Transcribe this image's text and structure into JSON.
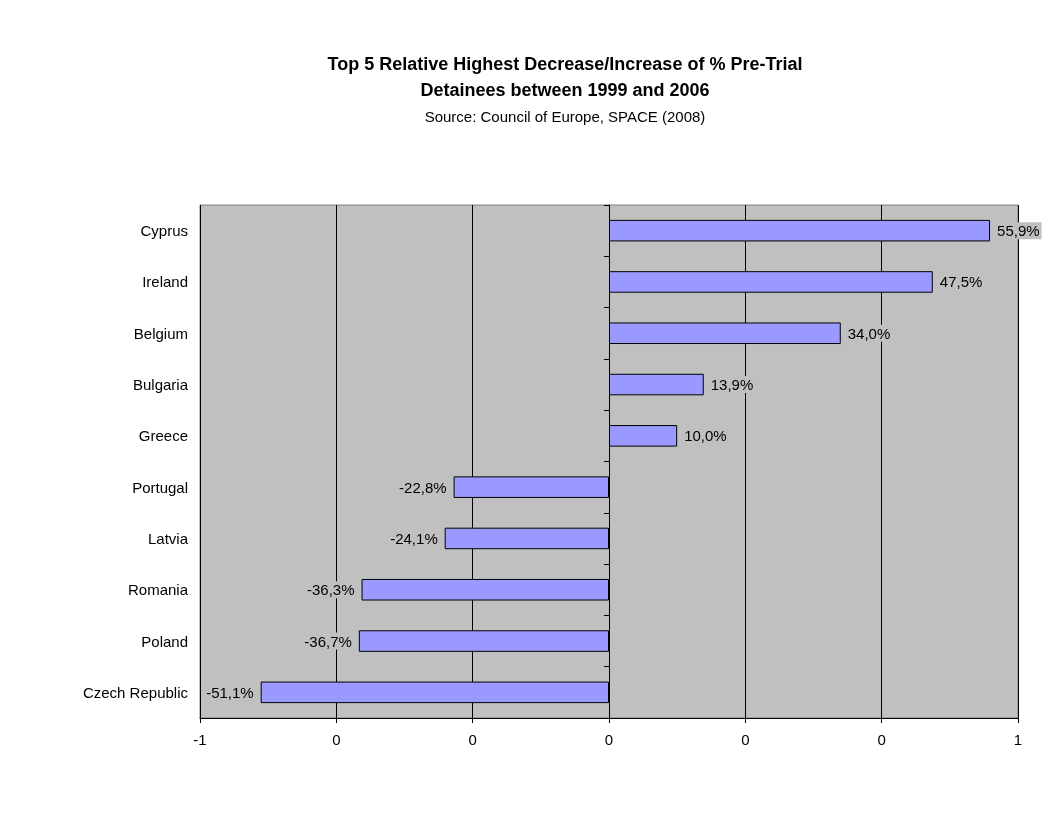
{
  "chart_data": {
    "type": "bar",
    "orientation": "horizontal",
    "title": "Top 5 Relative Highest Decrease/Increase of % Pre-Trial\nDetainees between 1999 and 2006",
    "subtitle": "Source: Council of Europe, SPACE (2008)",
    "categories": [
      "Cyprus",
      "Ireland",
      "Belgium",
      "Bulgaria",
      "Greece",
      "Portugal",
      "Latvia",
      "Romania",
      "Poland",
      "Czech Republic"
    ],
    "values": [
      0.559,
      0.475,
      0.34,
      0.139,
      0.1,
      -0.228,
      -0.241,
      -0.363,
      -0.367,
      -0.511
    ],
    "value_labels": [
      "55,9%",
      "47,5%",
      "34,0%",
      "13,9%",
      "10,0%",
      "-22,8%",
      "-24,1%",
      "-36,3%",
      "-36,7%",
      "-51,1%"
    ],
    "color": "#9999ff",
    "xlim": [
      -0.6,
      0.6
    ],
    "xticks": [
      {
        "value": -0.6,
        "label": "-1"
      },
      {
        "value": -0.4,
        "label": "0"
      },
      {
        "value": -0.2,
        "label": "0"
      },
      {
        "value": 0,
        "label": "0"
      },
      {
        "value": 0.2,
        "label": "0"
      },
      {
        "value": 0.4,
        "label": "0"
      },
      {
        "value": 0.6,
        "label": "1"
      }
    ],
    "grid": "x"
  }
}
